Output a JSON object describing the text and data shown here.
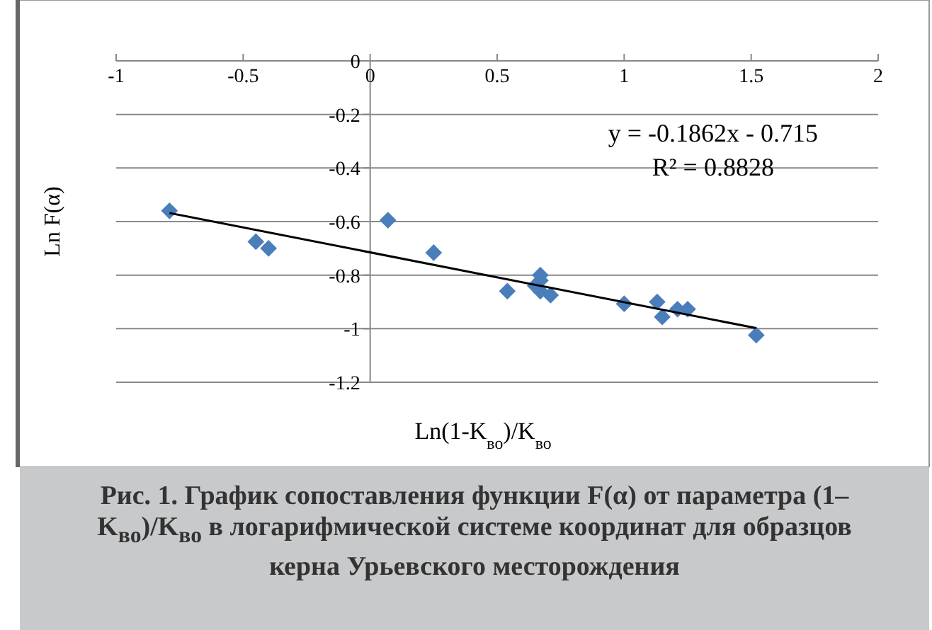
{
  "chart_data": {
    "type": "scatter",
    "xlabel": "Ln(1-K$_{во}$)/K$_{во}$",
    "ylabel": "Ln F(α)",
    "xlim": [
      -1,
      2
    ],
    "xticks": [
      -1,
      -0.5,
      0,
      0.5,
      1,
      1.5,
      2
    ],
    "ylim": [
      -1.2,
      0
    ],
    "yticks": [
      0,
      -0.2,
      -0.4,
      -0.6,
      -0.8,
      -1,
      -1.2
    ],
    "grid": "y",
    "marker": "diamond",
    "series": [
      {
        "color": "#4a7ebb",
        "x": [
          -0.79,
          -0.45,
          -0.4,
          0.07,
          0.25,
          0.54,
          0.67,
          0.67,
          0.65,
          0.67,
          0.71,
          1.0,
          1.13,
          1.15,
          1.21,
          1.25,
          1.52
        ],
        "values": [
          -0.56,
          -0.675,
          -0.7,
          -0.595,
          -0.716,
          -0.86,
          -0.8,
          -0.82,
          -0.84,
          -0.86,
          -0.875,
          -0.907,
          -0.9,
          -0.956,
          -0.927,
          -0.927,
          -1.024
        ]
      },
      {
        "type": "line",
        "color": "#000000",
        "marker": "none",
        "x": [
          -0.79,
          1.52
        ],
        "values": [
          -0.568,
          -0.998
        ]
      }
    ],
    "annotations": [
      "y = -0.1862x - 0.715",
      "R² = 0.8828",
      "Рис. 1. График сопоставления функции F(α) от параметра (1–K$_{во}$)/K$_{во}$ в логарифмической системе координат для образцов керна Урьевского месторождения"
    ]
  }
}
